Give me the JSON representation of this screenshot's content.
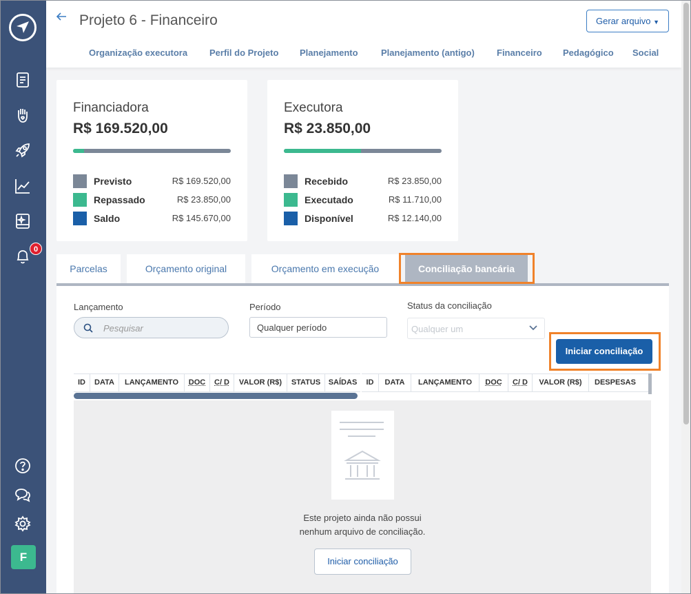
{
  "header": {
    "title": "Projeto 6 - Financeiro",
    "generate_button": "Gerar arquivo",
    "nav_tabs": [
      "Organização executora",
      "Perfil do Projeto",
      "Planejamento",
      "Planejamento (antigo)",
      "Financeiro",
      "Pedagógico",
      "Social"
    ]
  },
  "sidebar": {
    "notification_count": "0",
    "avatar_letter": "F",
    "icons": [
      "document-icon",
      "hand-heart-icon",
      "rocket-icon",
      "chart-line-icon",
      "book-sparkle-icon",
      "bell-icon",
      "help-icon",
      "chat-icon",
      "gear-icon"
    ]
  },
  "cards": {
    "financiadora": {
      "title": "Financiadora",
      "total": "R$ 169.520,00",
      "progress": 0.07,
      "rows": [
        {
          "label": "Previsto",
          "value": "R$ 169.520,00",
          "color": "#7b8797"
        },
        {
          "label": "Repassado",
          "value": "R$ 23.850,00",
          "color": "#3cb98f"
        },
        {
          "label": "Saldo",
          "value": "R$ 145.670,00",
          "color": "#1a5fa8"
        }
      ]
    },
    "executora": {
      "title": "Executora",
      "total": "R$ 23.850,00",
      "progress": 0.49,
      "rows": [
        {
          "label": "Recebido",
          "value": "R$ 23.850,00",
          "color": "#7b8797"
        },
        {
          "label": "Executado",
          "value": "R$ 11.710,00",
          "color": "#3cb98f"
        },
        {
          "label": "Disponível",
          "value": "R$ 12.140,00",
          "color": "#1a5fa8"
        }
      ]
    }
  },
  "tabs": [
    "Parcelas",
    "Orçamento original",
    "Orçamento em execução",
    "Conciliação bancária"
  ],
  "filters": {
    "lancamento_label": "Lançamento",
    "search_placeholder": "Pesquisar",
    "periodo_label": "Período",
    "periodo_value": "Qualquer período",
    "status_label": "Status da conciliação",
    "status_placeholder": "Qualquer um"
  },
  "start_button": "Iniciar conciliação",
  "table_left_headers": [
    "ID",
    "DATA",
    "LANÇAMENTO",
    "DOC",
    "C/ D",
    "VALOR (R$)",
    "STATUS",
    "SAÍDAS"
  ],
  "table_right_headers": [
    "ID",
    "DATA",
    "LANÇAMENTO",
    "DOC",
    "C/ D",
    "VALOR (R$)",
    "DESPESAS"
  ],
  "empty": {
    "line1": "Este projeto ainda não possui",
    "line2": "nenhum arquivo de conciliação.",
    "button": "Iniciar conciliação"
  }
}
